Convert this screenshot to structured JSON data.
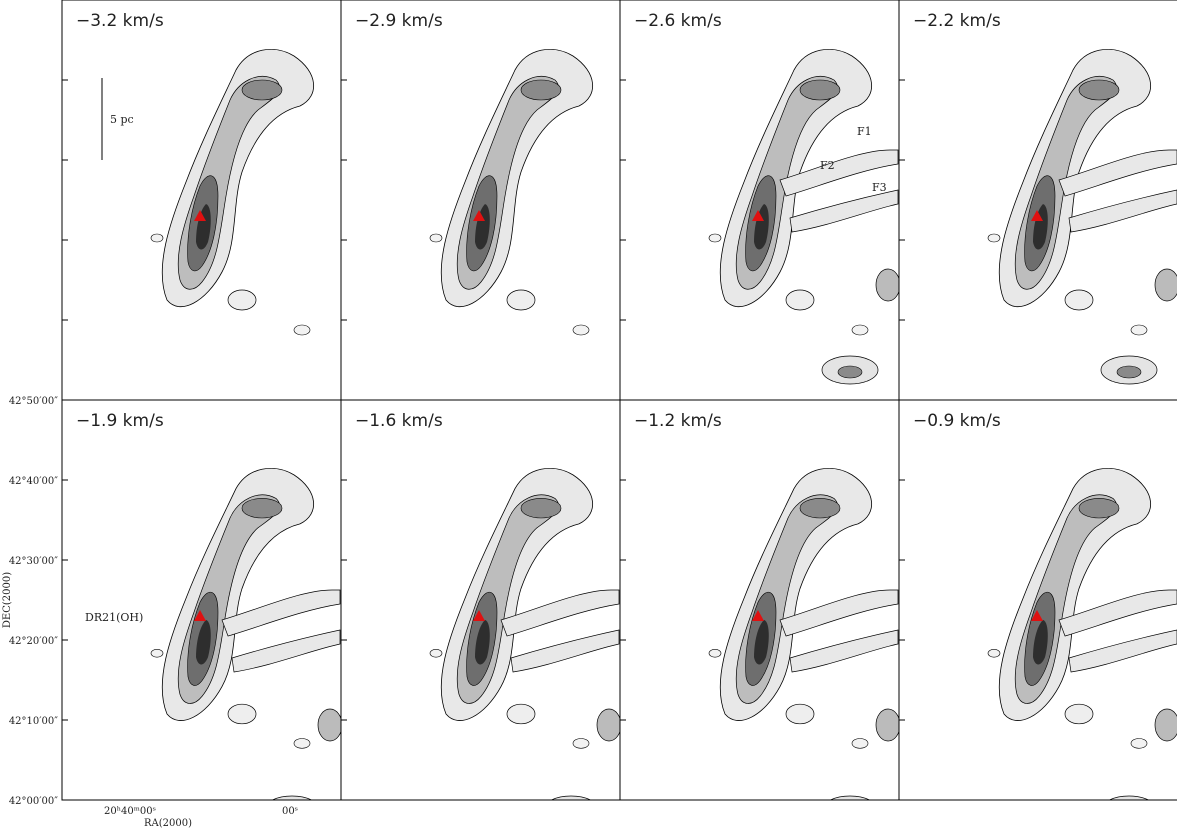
{
  "panels": [
    {
      "label": "−3.2 km/s"
    },
    {
      "label": "−2.9 km/s"
    },
    {
      "label": "−2.6 km/s"
    },
    {
      "label": "−2.2 km/s"
    },
    {
      "label": "−1.9 km/s"
    },
    {
      "label": "−1.6 km/s"
    },
    {
      "label": "−1.2 km/s"
    },
    {
      "label": "−0.9 km/s"
    }
  ],
  "annotations": {
    "scale": "5 pc",
    "f1": "F1",
    "f2": "F2",
    "f3": "F3",
    "source": "DR21(OH)"
  },
  "axes": {
    "y_label": "DEC(2000)",
    "x_label": "RA(2000)",
    "y_ticks": [
      "42°50′00″",
      "42°40′00″",
      "42°30′00″",
      "42°20′00″",
      "42°10′00″",
      "42°00′00″"
    ],
    "x_ticks": [
      "20ʰ40ᵐ00ˢ",
      "00ˢ"
    ]
  }
}
